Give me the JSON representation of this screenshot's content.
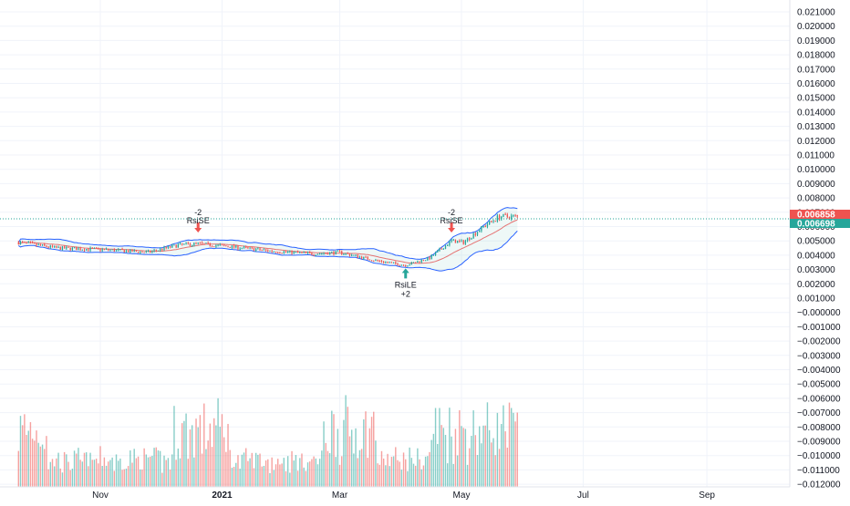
{
  "colors": {
    "up": "#26a69a",
    "down": "#ef5350",
    "band": "#2962ff",
    "band_fill": "#26a69a",
    "basis": "#e57373",
    "grid": "#f0f3fa",
    "text": "#131722",
    "last_red": "#ef5350",
    "last_green": "#26a69a"
  },
  "price_tags": [
    {
      "value": 0.006858,
      "label": "0.006858",
      "color": "#ef5350"
    },
    {
      "value": 0.006698,
      "label": "0.006698",
      "color": "#26a69a"
    }
  ],
  "signals": [
    {
      "name": "RsiSE",
      "qty": "-2",
      "date": "2020-12-20",
      "price": 0.0052,
      "dir": "short"
    },
    {
      "name": "RsiLE",
      "qty": "+2",
      "date": "2021-04-03",
      "price": 0.0034,
      "dir": "long"
    },
    {
      "name": "RsiSE",
      "qty": "-2",
      "date": "2021-04-26",
      "price": 0.0052,
      "dir": "short"
    }
  ],
  "chart_data": {
    "type": "candlestick",
    "x_range": [
      "2020-09-21",
      "2021-09-30"
    ],
    "y_range": [
      -0.012,
      0.0215
    ],
    "y_ticks": [
      "0.021000",
      "0.020000",
      "0.019000",
      "0.018000",
      "0.017000",
      "0.016000",
      "0.015000",
      "0.014000",
      "0.013000",
      "0.012000",
      "0.011000",
      "0.010000",
      "0.009000",
      "0.008000",
      "0.007000",
      "0.006000",
      "0.005000",
      "0.004000",
      "0.003000",
      "0.002000",
      "0.001000",
      "−0.000000",
      "−0.001000",
      "−0.002000",
      "−0.003000",
      "−0.004000",
      "−0.005000",
      "−0.006000",
      "−0.007000",
      "−0.008000",
      "−0.009000",
      "−0.010000",
      "−0.011000",
      "−0.012000"
    ],
    "x_ticks": [
      {
        "label": "Nov",
        "date": "2020-11-01"
      },
      {
        "label": "2021",
        "date": "2021-01-01"
      },
      {
        "label": "Mar",
        "date": "2021-03-01"
      },
      {
        "label": "May",
        "date": "2021-05-01"
      },
      {
        "label": "Jul",
        "date": "2021-07-01"
      },
      {
        "label": "Sep",
        "date": "2021-09-01"
      }
    ],
    "price_keypoints": [
      {
        "date": "2020-09-21",
        "price": 0.0049
      },
      {
        "date": "2020-10-10",
        "price": 0.0045
      },
      {
        "date": "2020-11-01",
        "price": 0.0044
      },
      {
        "date": "2020-11-25",
        "price": 0.0042
      },
      {
        "date": "2020-12-10",
        "price": 0.0047
      },
      {
        "date": "2020-12-20",
        "price": 0.0048
      },
      {
        "date": "2021-01-05",
        "price": 0.0046
      },
      {
        "date": "2021-01-25",
        "price": 0.0043
      },
      {
        "date": "2021-02-15",
        "price": 0.0041
      },
      {
        "date": "2021-03-01",
        "price": 0.0042
      },
      {
        "date": "2021-03-20",
        "price": 0.0036
      },
      {
        "date": "2021-04-03",
        "price": 0.0033
      },
      {
        "date": "2021-04-15",
        "price": 0.0038
      },
      {
        "date": "2021-04-26",
        "price": 0.005
      },
      {
        "date": "2021-05-02",
        "price": 0.0049
      },
      {
        "date": "2021-05-12",
        "price": 0.006
      },
      {
        "date": "2021-05-20",
        "price": 0.0067
      },
      {
        "date": "2021-05-29",
        "price": 0.0067
      }
    ],
    "volume_note": "relative volume bars, overlaid in lower half of pane"
  }
}
